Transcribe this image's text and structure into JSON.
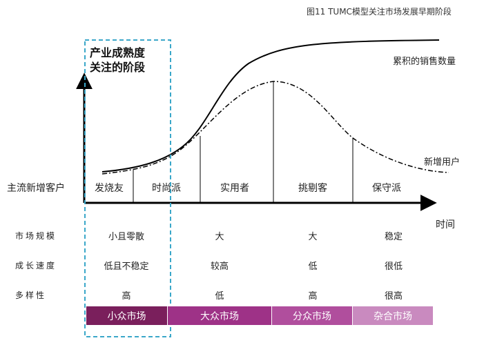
{
  "figure": {
    "title": "图11 TUMC模型关注市场发展早期阶段",
    "y_axis_label": "主流新增客户",
    "x_axis_label": "时间"
  },
  "focus_box": {
    "title_line1": "产业成熟度",
    "title_line2": "关注的阶段"
  },
  "curves": {
    "cumulative_label": "累积的销售数量",
    "new_users_label": "新增用户"
  },
  "segments": [
    "发烧友",
    "时尚派",
    "实用者",
    "挑剔客",
    "保守派"
  ],
  "rows": [
    {
      "label": "市场规模",
      "values": [
        "小且零散",
        "大",
        "大",
        "稳定"
      ]
    },
    {
      "label": "成长速度",
      "values": [
        "低且不稳定",
        "较高",
        "低",
        "很低"
      ]
    },
    {
      "label": "多样性",
      "values": [
        "高",
        "低",
        "高",
        "很高"
      ]
    }
  ],
  "market_bars": [
    {
      "label": "小众市场",
      "color": "#7a1f5c"
    },
    {
      "label": "大众市场",
      "color": "#9e3287"
    },
    {
      "label": "分众市场",
      "color": "#b04e9d"
    },
    {
      "label": "杂合市场",
      "color": "#c98abf"
    }
  ],
  "colors": {
    "focus_border": "#3aa7c9",
    "axis": "#000000"
  }
}
